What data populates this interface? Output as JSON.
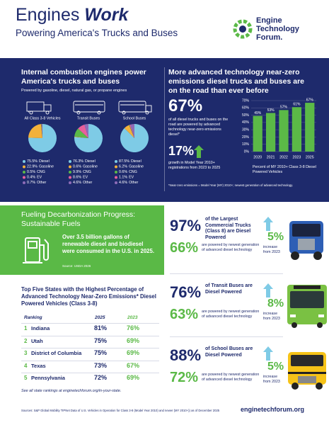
{
  "header": {
    "title": "Engines",
    "title_emphasis": "Work",
    "subtitle": "Powering America's Trucks and Buses",
    "logo": [
      "Engine",
      "Technology",
      "Forum."
    ]
  },
  "engines_power": {
    "heading": "Internal combustion engines power America's trucks and buses",
    "subheading": "Powered by gasoline, diesel, natural gas, or propane engines"
  },
  "near_zero": {
    "heading": "More advanced technology near-zero emissions diesel trucks and buses are on the road than ever before",
    "stat": "67%",
    "stat_text": "of all diesel trucks and buses on the road are powered by advanced technology near-zero emissions diesel*",
    "growth": "17%",
    "growth_text": "growth in Model Year 2010+ registrations from 2023 to 2025",
    "footnote": "*Near-zero emissions = Model Year (MY) 2010+; newest generation of advanced technology."
  },
  "fuels": {
    "title": "Fueling Decarbonization Progress: Sustainable Fuels",
    "text": "Over 3.5 billion gallons of renewable diesel and biodiesel were consumed in the U.S. in 2025.",
    "source": "Source: USDA 2026"
  },
  "states": {
    "title": "Top Five States with the Highest Percentage of Advanced Technology Near-Zero Emissions* Diesel Powered Vehicles (Class 3-8)",
    "columns": [
      "Ranking",
      "2025",
      "2023"
    ],
    "rows": [
      [
        "1",
        "Indiana",
        "81%",
        "76%"
      ],
      [
        "2",
        "Utah",
        "75%",
        "69%"
      ],
      [
        "3",
        "District of Columbia",
        "75%",
        "69%"
      ],
      [
        "4",
        "Texas",
        "73%",
        "67%"
      ],
      [
        "5",
        "Pennsylvania",
        "72%",
        "69%"
      ]
    ],
    "note": "See all state rankings at enginetechforum.org/in-your-state."
  },
  "vehicles": [
    {
      "share": "97%",
      "share_text": "of the Largest Commercial Trucks (Class 8) are Diesel Powered",
      "newest": "66%",
      "newest_text": "are powered by newest generation of advanced diesel technology",
      "increase": "5%",
      "increase_text": "increase from 2023"
    },
    {
      "share": "76%",
      "share_text": "of Transit Buses are Diesel Powered",
      "newest": "63%",
      "newest_text": "are powered by newest generation of advanced diesel technology",
      "increase": "8%",
      "increase_text": "increase from 2023"
    },
    {
      "share": "88%",
      "share_text": "of School Buses are Diesel Powered",
      "newest": "72%",
      "newest_text": "are powered by newest generation of advanced diesel technology",
      "increase": "5%",
      "increase_text": "increase from 2023"
    }
  ],
  "footer": {
    "sources": "Sources: S&P Global Mobility TIPNet Data of U.S. Vehicles in Operation for Class 3-8 (Model Year 2010) and newer (MY 2010+)) as of December 2025",
    "url": "enginetechforum.org"
  },
  "chart_data": [
    {
      "type": "bar",
      "categories": [
        "2020",
        "2021",
        "2022",
        "2023",
        "2025"
      ],
      "values": [
        49,
        53,
        57,
        61,
        67
      ],
      "value_labels": [
        "49%",
        "53%",
        "57%",
        "61%",
        "67%"
      ],
      "color": "#5bb947",
      "ylim": [
        0,
        70
      ],
      "yticks": [
        {
          "value": 0,
          "label": "0%"
        },
        {
          "value": 10,
          "label": "10%"
        },
        {
          "value": 20,
          "label": "20%"
        },
        {
          "value": 30,
          "label": "30%"
        },
        {
          "value": 40,
          "label": "40%"
        },
        {
          "value": 50,
          "label": "50%"
        },
        {
          "value": 60,
          "label": "60%"
        },
        {
          "value": 70,
          "label": "70%"
        }
      ],
      "grid": true,
      "xlabel": "Percent of MY 2010+ Class 3-8 Diesel Powered Vehicles"
    },
    {
      "type": "pie",
      "title": "All Class 3-8 Vehicles",
      "categories": [
        "Diesel",
        "Gasoline",
        "CNG",
        "EV",
        "Other"
      ],
      "values": [
        75.5,
        22.9,
        0.5,
        0.4,
        0.7
      ],
      "value_labels": [
        "75.5%",
        "22.9%",
        "0.5%",
        "0.4%",
        "0.7%"
      ],
      "colors": [
        "#7ecbe6",
        "#f3b13a",
        "#5bb947",
        "#e8609c",
        "#8e6cb8"
      ]
    },
    {
      "type": "pie",
      "title": "Transit Buses",
      "categories": [
        "Diesel",
        "Gasoline",
        "CNG",
        "EV",
        "Other"
      ],
      "values": [
        76.3,
        0.6,
        9.9,
        8.6,
        4.6
      ],
      "value_labels": [
        "76.3%",
        "0.6%",
        "9.9%",
        "8.6%",
        "4.6%"
      ],
      "colors": [
        "#7ecbe6",
        "#f3b13a",
        "#5bb947",
        "#e8609c",
        "#8e6cb8"
      ]
    },
    {
      "type": "pie",
      "title": "School Buses",
      "categories": [
        "Diesel",
        "Gasoline",
        "CNG",
        "EV",
        "Other"
      ],
      "values": [
        87.5,
        6.2,
        0.6,
        1.1,
        4.6
      ],
      "value_labels": [
        "87.5%",
        "6.2%",
        "0.6%",
        "1.1%",
        "4.6%"
      ],
      "colors": [
        "#7ecbe6",
        "#f3b13a",
        "#5bb947",
        "#e8609c",
        "#8e6cb8"
      ]
    }
  ]
}
